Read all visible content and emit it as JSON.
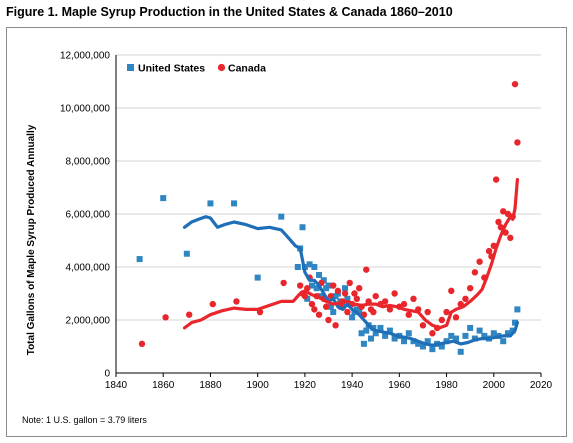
{
  "title": "Figure 1. Maple Syrup Production in the United States & Canada 1860–2010",
  "note": "Note: 1 U.S. gallon = 3.79 liters",
  "colors": {
    "us": "#2f86c2",
    "us_line": "#1f6fb8",
    "canada": "#e8262c",
    "canada_line": "#e8262c"
  },
  "chart_data": {
    "type": "scatter",
    "title": "Figure 1. Maple Syrup Production in the United States & Canada 1860–2010",
    "xlabel": "",
    "ylabel": "Total Gallons of Maple Syrup Produced Annually",
    "xlim": [
      1840,
      2020
    ],
    "ylim": [
      0,
      12000000
    ],
    "x_ticks": [
      "1840",
      "1860",
      "1880",
      "1900",
      "1920",
      "1940",
      "1960",
      "1980",
      "2000",
      "2020"
    ],
    "y_ticks": [
      "0",
      "2,000,000",
      "4,000,000",
      "6,000,000",
      "8,000,000",
      "10,000,000",
      "12,000,000"
    ],
    "legend": {
      "placement": "top-left",
      "items": [
        "United States",
        "Canada"
      ]
    },
    "grid": "horizontal",
    "series": [
      {
        "name": "United States",
        "kind": "points",
        "marker": "square",
        "x": [
          1850,
          1860,
          1870,
          1880,
          1890,
          1900,
          1910,
          1917,
          1918,
          1919,
          1920,
          1921,
          1922,
          1923,
          1924,
          1925,
          1926,
          1927,
          1928,
          1929,
          1930,
          1931,
          1932,
          1933,
          1934,
          1935,
          1936,
          1937,
          1938,
          1939,
          1940,
          1941,
          1942,
          1943,
          1944,
          1945,
          1946,
          1947,
          1948,
          1949,
          1950,
          1952,
          1954,
          1956,
          1958,
          1960,
          1962,
          1964,
          1966,
          1968,
          1970,
          1972,
          1974,
          1976,
          1978,
          1980,
          1982,
          1984,
          1986,
          1988,
          1990,
          1992,
          1994,
          1996,
          1998,
          2000,
          2002,
          2004,
          2006,
          2008,
          2009,
          2010
        ],
        "y": [
          4300000,
          6600000,
          4500000,
          6400000,
          6400000,
          3600000,
          5900000,
          4000000,
          4700000,
          5500000,
          4000000,
          2800000,
          4100000,
          3300000,
          4000000,
          3200000,
          3700000,
          2900000,
          3500000,
          3200000,
          3300000,
          2500000,
          2300000,
          2900000,
          3000000,
          2700000,
          2500000,
          3200000,
          2800000,
          2600000,
          2100000,
          2300000,
          2400000,
          2300000,
          1500000,
          1100000,
          1600000,
          1800000,
          1300000,
          1700000,
          1500000,
          1700000,
          1400000,
          1600000,
          1300000,
          1400000,
          1200000,
          1500000,
          1200000,
          1100000,
          1000000,
          1200000,
          900000,
          1100000,
          1000000,
          1200000,
          1400000,
          1300000,
          800000,
          1400000,
          1700000,
          1300000,
          1600000,
          1400000,
          1300000,
          1500000,
          1400000,
          1200000,
          1500000,
          1600000,
          1900000,
          2400000
        ]
      },
      {
        "name": "Canada",
        "kind": "points",
        "marker": "circle",
        "x": [
          1851,
          1861,
          1871,
          1881,
          1891,
          1901,
          1911,
          1918,
          1919,
          1920,
          1921,
          1922,
          1923,
          1924,
          1925,
          1926,
          1927,
          1928,
          1929,
          1930,
          1931,
          1932,
          1933,
          1934,
          1935,
          1936,
          1937,
          1938,
          1939,
          1940,
          1941,
          1942,
          1943,
          1944,
          1945,
          1946,
          1947,
          1948,
          1949,
          1950,
          1952,
          1954,
          1956,
          1958,
          1960,
          1962,
          1964,
          1966,
          1968,
          1970,
          1972,
          1974,
          1976,
          1978,
          1980,
          1982,
          1984,
          1986,
          1988,
          1990,
          1992,
          1994,
          1996,
          1998,
          1999,
          2000,
          2001,
          2002,
          2003,
          2004,
          2005,
          2006,
          2007,
          2008,
          2009,
          2010
        ],
        "y": [
          1100000,
          2100000,
          2200000,
          2600000,
          2700000,
          2300000,
          3400000,
          3300000,
          3000000,
          2900000,
          3200000,
          3600000,
          2600000,
          2400000,
          2900000,
          2200000,
          3400000,
          2800000,
          2500000,
          2000000,
          2900000,
          3300000,
          1800000,
          3100000,
          2500000,
          2700000,
          3000000,
          2300000,
          3400000,
          2600000,
          3000000,
          2800000,
          3200000,
          2500000,
          2200000,
          3900000,
          2700000,
          2400000,
          2300000,
          2900000,
          2600000,
          2700000,
          2400000,
          3000000,
          2500000,
          2600000,
          2200000,
          2800000,
          2400000,
          1800000,
          2300000,
          1500000,
          1700000,
          2000000,
          2300000,
          3100000,
          2100000,
          2600000,
          2800000,
          3200000,
          3800000,
          4200000,
          3600000,
          4600000,
          4400000,
          4800000,
          7300000,
          5700000,
          5500000,
          6100000,
          5300000,
          6000000,
          5100000,
          5900000,
          10900000,
          8700000
        ]
      },
      {
        "name": "United States",
        "kind": "line",
        "x": [
          1869,
          1872,
          1875,
          1878,
          1880,
          1883,
          1886,
          1890,
          1895,
          1900,
          1905,
          1910,
          1913,
          1916,
          1918,
          1920,
          1922,
          1924,
          1926,
          1928,
          1930,
          1932,
          1934,
          1936,
          1938,
          1940,
          1942,
          1944,
          1946,
          1948,
          1950,
          1953,
          1956,
          1959,
          1962,
          1965,
          1968,
          1971,
          1974,
          1977,
          1980,
          1983,
          1986,
          1989,
          1992,
          1995,
          1998,
          2001,
          2004,
          2007,
          2009,
          2010
        ],
        "y": [
          5500000,
          5700000,
          5800000,
          5900000,
          5850000,
          5500000,
          5600000,
          5700000,
          5600000,
          5450000,
          5500000,
          5400000,
          5100000,
          4800000,
          4700000,
          3800000,
          3500000,
          3500000,
          3300000,
          3000000,
          2700000,
          2800000,
          2500000,
          2400000,
          2600000,
          2400000,
          2300000,
          2100000,
          1900000,
          1700000,
          1600000,
          1550000,
          1500000,
          1400000,
          1350000,
          1300000,
          1200000,
          1100000,
          1050000,
          1100000,
          1150000,
          1200000,
          1100000,
          1150000,
          1250000,
          1300000,
          1300000,
          1350000,
          1400000,
          1400000,
          1600000,
          1900000
        ]
      },
      {
        "name": "Canada",
        "kind": "line",
        "x": [
          1869,
          1872,
          1876,
          1880,
          1885,
          1890,
          1895,
          1900,
          1905,
          1910,
          1915,
          1918,
          1920,
          1923,
          1926,
          1929,
          1932,
          1935,
          1938,
          1941,
          1944,
          1947,
          1950,
          1953,
          1956,
          1959,
          1962,
          1965,
          1968,
          1971,
          1974,
          1977,
          1980,
          1982,
          1984,
          1987,
          1990,
          1993,
          1995,
          1997,
          1999,
          2001,
          2003,
          2005,
          2007,
          2008,
          2009,
          2010
        ],
        "y": [
          1700000,
          1900000,
          2000000,
          2200000,
          2350000,
          2450000,
          2400000,
          2400000,
          2550000,
          2700000,
          2700000,
          3000000,
          3100000,
          2950000,
          2850000,
          2700000,
          2600000,
          2650000,
          2700000,
          2600000,
          2550000,
          2600000,
          2600000,
          2500000,
          2550000,
          2500000,
          2400000,
          2350000,
          2300000,
          2000000,
          1800000,
          1700000,
          1800000,
          2300000,
          2400000,
          2500000,
          2700000,
          2950000,
          3150000,
          3600000,
          4100000,
          4700000,
          5200000,
          5600000,
          5900000,
          5800000,
          6200000,
          7300000
        ]
      }
    ]
  }
}
